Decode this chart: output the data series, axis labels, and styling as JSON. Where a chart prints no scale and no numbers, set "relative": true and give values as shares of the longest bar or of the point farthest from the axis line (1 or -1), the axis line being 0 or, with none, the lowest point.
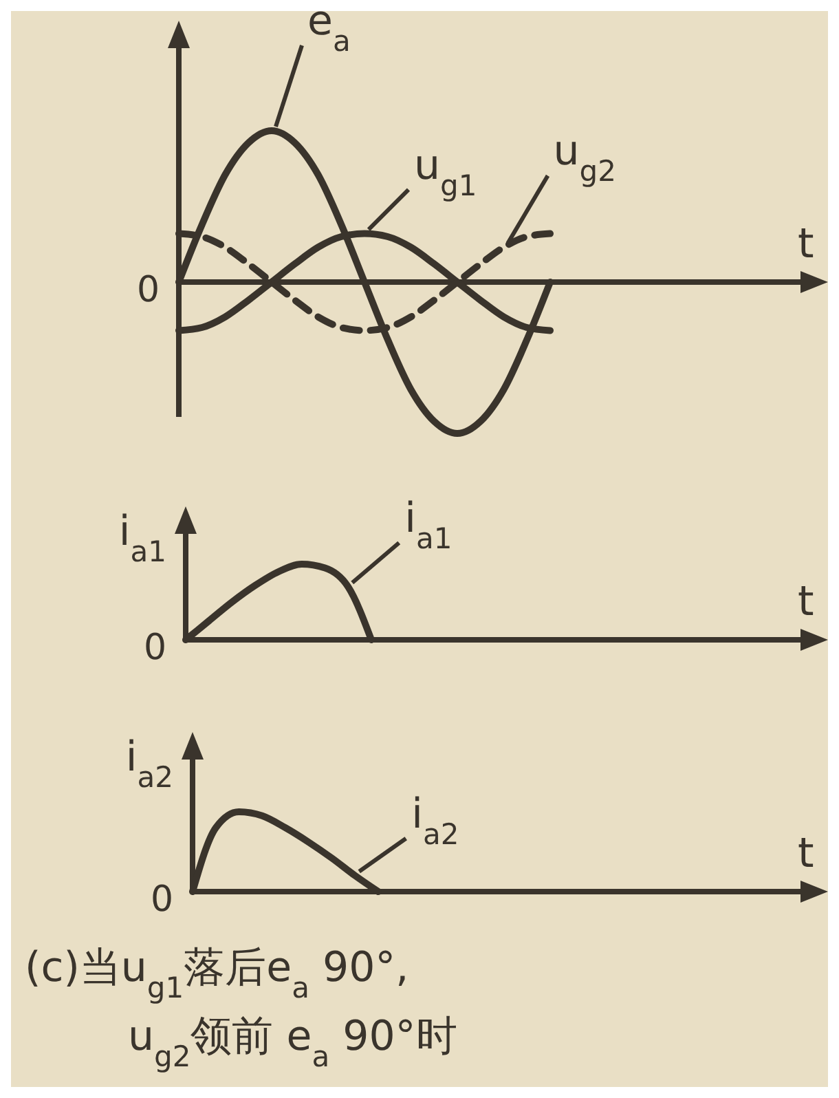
{
  "chart_data": [
    {
      "type": "line",
      "relative": true,
      "xlabel": "t",
      "categories": [
        null,
        null,
        null,
        null,
        null,
        null,
        null,
        null,
        null,
        null,
        null,
        null,
        null,
        null,
        null,
        null,
        null
      ],
      "line_style": "solid",
      "annotations": [
        "0"
      ],
      "series": [
        {
          "name": "e$_{a}$",
          "color": "#3a342c",
          "values": [
            0,
            0.38,
            0.71,
            0.92,
            1,
            0.92,
            0.71,
            0.38,
            0,
            -0.38,
            -0.71,
            -0.92,
            -1,
            -0.92,
            -0.71,
            -0.38,
            0
          ]
        },
        {
          "name": "u$_{g1}$",
          "color": "#3a342c",
          "values": [
            -0.32,
            -0.3,
            -0.23,
            -0.12,
            0,
            0.12,
            0.23,
            0.3,
            0.32,
            0.3,
            0.23,
            0.12,
            0,
            -0.12,
            -0.23,
            -0.3,
            -0.32
          ]
        },
        {
          "name": "u$_{g2}$",
          "color": "#3a342c",
          "line_style": "dashed",
          "values": [
            0.32,
            0.3,
            0.23,
            0.12,
            0,
            -0.12,
            -0.23,
            -0.3,
            -0.32,
            -0.3,
            -0.23,
            -0.12,
            0,
            0.12,
            0.23,
            0.3,
            0.32
          ]
        }
      ]
    },
    {
      "type": "line",
      "relative": true,
      "xlabel": "t",
      "ylabel": "i$_{a1}$",
      "categories": [
        null,
        null,
        null,
        null,
        null,
        null,
        null,
        null,
        null,
        null,
        null,
        null,
        null,
        null,
        null,
        null,
        null
      ],
      "line_style": "solid",
      "annotations": [
        "0"
      ],
      "series": [
        {
          "name": "i$_{a1}$",
          "color": "#3a342c",
          "values": [
            0,
            0.25,
            0.5,
            0.72,
            0.9,
            1,
            0.95,
            0.7,
            0,
            null,
            null,
            null,
            null,
            null,
            null,
            null,
            null
          ]
        }
      ]
    },
    {
      "type": "line",
      "relative": true,
      "xlabel": "t",
      "ylabel": "i$_{a2}$",
      "categories": [
        null,
        null,
        null,
        null,
        null,
        null,
        null,
        null,
        null,
        null,
        null,
        null,
        null,
        null,
        null,
        null,
        null
      ],
      "line_style": "solid",
      "annotations": [
        "0",
        "(c)当u$_{g1}$落后e$_{a}$ 90°,",
        "u$_{g2}$领前 e$_{a}$ 90°时"
      ],
      "series": [
        {
          "name": "i$_{a2}$",
          "color": "#3a342c",
          "values": [
            0,
            0.8,
            1,
            0.95,
            0.8,
            0.62,
            0.42,
            0.2,
            0,
            null,
            null,
            null,
            null,
            null,
            null,
            null,
            null
          ]
        }
      ]
    }
  ]
}
